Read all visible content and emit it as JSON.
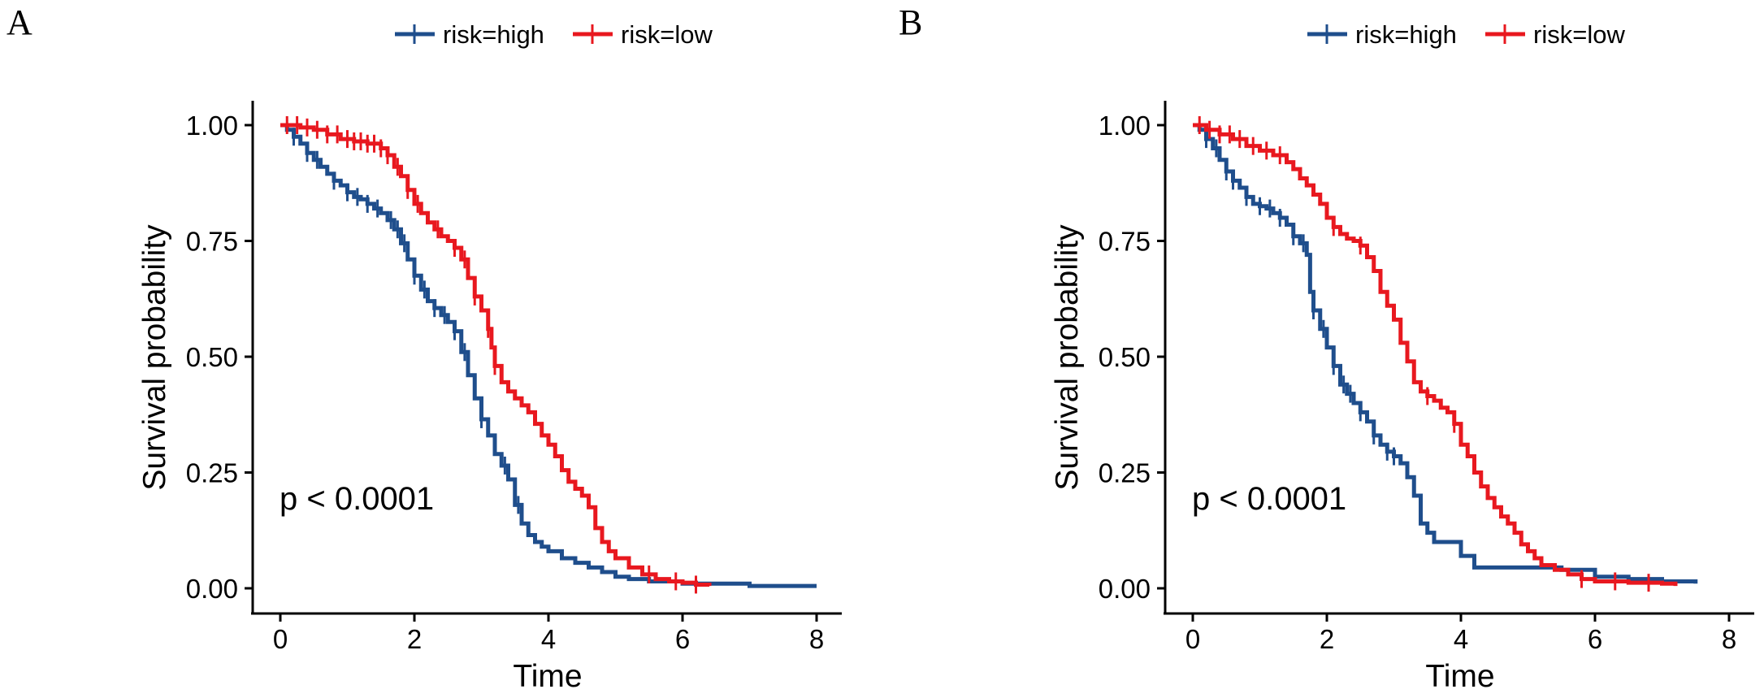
{
  "chart_data": [
    {
      "panel_label": "A",
      "type": "line",
      "subtype": "kaplan-meier",
      "xlabel": "Time",
      "ylabel": "Survival probability",
      "xlim": [
        0,
        8
      ],
      "ylim": [
        0,
        1
      ],
      "x_ticks": [
        "0",
        "2",
        "4",
        "6",
        "8"
      ],
      "y_ticks": [
        "0.00",
        "0.25",
        "0.50",
        "0.75",
        "1.00"
      ],
      "annotation": "p < 0.0001",
      "legend_position": "top-center",
      "series": [
        {
          "name": "risk=high",
          "color": "#1f4e8c",
          "points": [
            [
              0,
              1.0
            ],
            [
              0.1,
              0.99
            ],
            [
              0.2,
              0.975
            ],
            [
              0.3,
              0.96
            ],
            [
              0.4,
              0.94
            ],
            [
              0.5,
              0.925
            ],
            [
              0.6,
              0.91
            ],
            [
              0.7,
              0.895
            ],
            [
              0.8,
              0.88
            ],
            [
              0.9,
              0.87
            ],
            [
              1.0,
              0.855
            ],
            [
              1.1,
              0.845
            ],
            [
              1.2,
              0.84
            ],
            [
              1.3,
              0.83
            ],
            [
              1.4,
              0.82
            ],
            [
              1.5,
              0.81
            ],
            [
              1.6,
              0.795
            ],
            [
              1.7,
              0.775
            ],
            [
              1.8,
              0.745
            ],
            [
              1.9,
              0.71
            ],
            [
              2.0,
              0.675
            ],
            [
              2.1,
              0.645
            ],
            [
              2.2,
              0.62
            ],
            [
              2.3,
              0.605
            ],
            [
              2.4,
              0.59
            ],
            [
              2.5,
              0.575
            ],
            [
              2.6,
              0.555
            ],
            [
              2.7,
              0.51
            ],
            [
              2.8,
              0.46
            ],
            [
              2.9,
              0.41
            ],
            [
              3.0,
              0.365
            ],
            [
              3.1,
              0.33
            ],
            [
              3.2,
              0.29
            ],
            [
              3.3,
              0.265
            ],
            [
              3.4,
              0.235
            ],
            [
              3.5,
              0.18
            ],
            [
              3.6,
              0.14
            ],
            [
              3.7,
              0.115
            ],
            [
              3.8,
              0.1
            ],
            [
              3.9,
              0.09
            ],
            [
              4.0,
              0.08
            ],
            [
              4.2,
              0.065
            ],
            [
              4.4,
              0.055
            ],
            [
              4.6,
              0.045
            ],
            [
              4.8,
              0.035
            ],
            [
              5.0,
              0.025
            ],
            [
              5.2,
              0.02
            ],
            [
              5.5,
              0.015
            ],
            [
              6.0,
              0.01
            ],
            [
              7.0,
              0.005
            ],
            [
              8.0,
              0.005
            ]
          ],
          "censor_x": [
            0.2,
            0.4,
            0.55,
            0.8,
            1.0,
            1.15,
            1.3,
            1.45,
            1.65,
            1.75,
            1.85,
            2.0,
            2.15,
            2.3,
            2.45,
            2.6,
            2.75,
            3.0,
            3.35,
            3.55
          ]
        },
        {
          "name": "risk=low",
          "color": "#e8181f",
          "points": [
            [
              0,
              1.0
            ],
            [
              0.3,
              0.995
            ],
            [
              0.5,
              0.99
            ],
            [
              0.7,
              0.98
            ],
            [
              0.9,
              0.97
            ],
            [
              1.1,
              0.965
            ],
            [
              1.3,
              0.96
            ],
            [
              1.5,
              0.95
            ],
            [
              1.6,
              0.935
            ],
            [
              1.7,
              0.91
            ],
            [
              1.8,
              0.89
            ],
            [
              1.9,
              0.86
            ],
            [
              2.0,
              0.83
            ],
            [
              2.1,
              0.81
            ],
            [
              2.2,
              0.79
            ],
            [
              2.3,
              0.775
            ],
            [
              2.4,
              0.76
            ],
            [
              2.5,
              0.75
            ],
            [
              2.6,
              0.735
            ],
            [
              2.7,
              0.71
            ],
            [
              2.8,
              0.67
            ],
            [
              2.9,
              0.63
            ],
            [
              3.0,
              0.6
            ],
            [
              3.1,
              0.56
            ],
            [
              3.15,
              0.52
            ],
            [
              3.2,
              0.48
            ],
            [
              3.3,
              0.445
            ],
            [
              3.4,
              0.425
            ],
            [
              3.5,
              0.41
            ],
            [
              3.6,
              0.395
            ],
            [
              3.7,
              0.38
            ],
            [
              3.8,
              0.355
            ],
            [
              3.9,
              0.33
            ],
            [
              4.0,
              0.31
            ],
            [
              4.1,
              0.285
            ],
            [
              4.2,
              0.255
            ],
            [
              4.3,
              0.23
            ],
            [
              4.4,
              0.215
            ],
            [
              4.5,
              0.2
            ],
            [
              4.6,
              0.175
            ],
            [
              4.7,
              0.13
            ],
            [
              4.8,
              0.1
            ],
            [
              4.9,
              0.08
            ],
            [
              5.0,
              0.065
            ],
            [
              5.2,
              0.045
            ],
            [
              5.4,
              0.03
            ],
            [
              5.6,
              0.02
            ],
            [
              5.8,
              0.015
            ],
            [
              6.0,
              0.012
            ],
            [
              6.2,
              0.008
            ],
            [
              6.4,
              0.005
            ]
          ],
          "censor_x": [
            0.1,
            0.25,
            0.4,
            0.55,
            0.7,
            0.85,
            1.0,
            1.1,
            1.2,
            1.3,
            1.4,
            1.5,
            1.6,
            1.75,
            1.9,
            2.05,
            2.35,
            2.6,
            2.75,
            2.9,
            3.1,
            3.2,
            5.5,
            5.9,
            6.2
          ]
        }
      ]
    },
    {
      "panel_label": "B",
      "type": "line",
      "subtype": "kaplan-meier",
      "xlabel": "Time",
      "ylabel": "Survival probability",
      "xlim": [
        0,
        8
      ],
      "ylim": [
        0,
        1
      ],
      "x_ticks": [
        "0",
        "2",
        "4",
        "6",
        "8"
      ],
      "y_ticks": [
        "0.00",
        "0.25",
        "0.50",
        "0.75",
        "1.00"
      ],
      "annotation": "p < 0.0001",
      "legend_position": "top-center",
      "series": [
        {
          "name": "risk=high",
          "color": "#1f4e8c",
          "points": [
            [
              0,
              1.0
            ],
            [
              0.1,
              0.99
            ],
            [
              0.2,
              0.97
            ],
            [
              0.3,
              0.95
            ],
            [
              0.4,
              0.925
            ],
            [
              0.5,
              0.9
            ],
            [
              0.6,
              0.88
            ],
            [
              0.7,
              0.865
            ],
            [
              0.8,
              0.845
            ],
            [
              0.9,
              0.83
            ],
            [
              1.0,
              0.825
            ],
            [
              1.1,
              0.82
            ],
            [
              1.2,
              0.81
            ],
            [
              1.3,
              0.8
            ],
            [
              1.4,
              0.785
            ],
            [
              1.5,
              0.76
            ],
            [
              1.6,
              0.745
            ],
            [
              1.7,
              0.72
            ],
            [
              1.75,
              0.64
            ],
            [
              1.8,
              0.6
            ],
            [
              1.9,
              0.56
            ],
            [
              2.0,
              0.52
            ],
            [
              2.1,
              0.48
            ],
            [
              2.2,
              0.44
            ],
            [
              2.3,
              0.42
            ],
            [
              2.4,
              0.4
            ],
            [
              2.5,
              0.38
            ],
            [
              2.6,
              0.36
            ],
            [
              2.7,
              0.33
            ],
            [
              2.8,
              0.31
            ],
            [
              2.9,
              0.295
            ],
            [
              3.0,
              0.285
            ],
            [
              3.1,
              0.27
            ],
            [
              3.2,
              0.24
            ],
            [
              3.3,
              0.2
            ],
            [
              3.4,
              0.14
            ],
            [
              3.5,
              0.12
            ],
            [
              3.6,
              0.1
            ],
            [
              3.8,
              0.1
            ],
            [
              4.0,
              0.07
            ],
            [
              4.2,
              0.045
            ],
            [
              4.5,
              0.045
            ],
            [
              5.0,
              0.045
            ],
            [
              5.5,
              0.04
            ],
            [
              6.0,
              0.025
            ],
            [
              6.5,
              0.02
            ],
            [
              7.0,
              0.015
            ],
            [
              7.5,
              0.01
            ]
          ],
          "censor_x": [
            0.2,
            0.35,
            0.5,
            0.6,
            0.8,
            1.0,
            1.15,
            1.3,
            1.5,
            1.65,
            1.8,
            1.95,
            2.1,
            2.25,
            2.35,
            2.5,
            2.7,
            2.9,
            3.0
          ]
        },
        {
          "name": "risk=low",
          "color": "#e8181f",
          "points": [
            [
              0,
              1.0
            ],
            [
              0.2,
              0.99
            ],
            [
              0.4,
              0.98
            ],
            [
              0.6,
              0.97
            ],
            [
              0.8,
              0.955
            ],
            [
              1.0,
              0.945
            ],
            [
              1.2,
              0.935
            ],
            [
              1.4,
              0.92
            ],
            [
              1.5,
              0.905
            ],
            [
              1.6,
              0.885
            ],
            [
              1.7,
              0.87
            ],
            [
              1.8,
              0.85
            ],
            [
              1.9,
              0.83
            ],
            [
              2.0,
              0.8
            ],
            [
              2.1,
              0.78
            ],
            [
              2.2,
              0.765
            ],
            [
              2.3,
              0.755
            ],
            [
              2.4,
              0.75
            ],
            [
              2.5,
              0.74
            ],
            [
              2.6,
              0.715
            ],
            [
              2.7,
              0.685
            ],
            [
              2.8,
              0.64
            ],
            [
              2.9,
              0.61
            ],
            [
              3.0,
              0.58
            ],
            [
              3.1,
              0.53
            ],
            [
              3.2,
              0.49
            ],
            [
              3.3,
              0.445
            ],
            [
              3.4,
              0.425
            ],
            [
              3.5,
              0.415
            ],
            [
              3.6,
              0.405
            ],
            [
              3.7,
              0.39
            ],
            [
              3.8,
              0.38
            ],
            [
              3.9,
              0.355
            ],
            [
              4.0,
              0.31
            ],
            [
              4.1,
              0.285
            ],
            [
              4.2,
              0.25
            ],
            [
              4.3,
              0.22
            ],
            [
              4.4,
              0.195
            ],
            [
              4.5,
              0.175
            ],
            [
              4.6,
              0.155
            ],
            [
              4.7,
              0.14
            ],
            [
              4.8,
              0.12
            ],
            [
              4.9,
              0.095
            ],
            [
              5.0,
              0.08
            ],
            [
              5.1,
              0.065
            ],
            [
              5.2,
              0.05
            ],
            [
              5.4,
              0.04
            ],
            [
              5.6,
              0.03
            ],
            [
              5.8,
              0.02
            ],
            [
              6.0,
              0.015
            ],
            [
              6.5,
              0.012
            ],
            [
              7.0,
              0.01
            ],
            [
              7.2,
              0.005
            ]
          ],
          "censor_x": [
            0.1,
            0.25,
            0.4,
            0.55,
            0.7,
            0.9,
            1.1,
            1.3,
            2.1,
            2.5,
            3.5,
            3.9,
            5.8,
            6.3,
            6.8
          ]
        }
      ]
    }
  ]
}
